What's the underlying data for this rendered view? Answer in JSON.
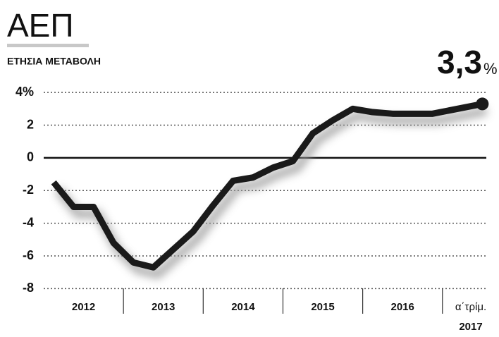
{
  "chart_data": {
    "type": "line",
    "title": "ΑΕΠ",
    "subtitle": "ΕΤΗΣΙΑ ΜΕΤΑΒΟΛΗ",
    "annotation": {
      "text": "3,3",
      "unit": "%"
    },
    "categories": [
      "2012",
      "2013",
      "2014",
      "2015",
      "2016",
      "α΄τρίμ."
    ],
    "category_sublabel": "2017",
    "x": [
      2012.125,
      2012.375,
      2012.625,
      2012.875,
      2013.125,
      2013.375,
      2013.625,
      2013.875,
      2014.125,
      2014.375,
      2014.625,
      2014.875,
      2015.125,
      2015.375,
      2015.625,
      2015.875,
      2016.125,
      2016.375,
      2016.625,
      2016.875,
      2017.5
    ],
    "series": [
      {
        "name": "ΑΕΠ",
        "color": "#1a1a1a",
        "values": [
          -1.5,
          -3.0,
          -3.0,
          -5.2,
          -6.4,
          -6.7,
          -5.6,
          -4.5,
          -2.9,
          -1.4,
          -1.2,
          -0.6,
          -0.2,
          1.5,
          2.3,
          3.0,
          2.8,
          2.7,
          2.7,
          2.7,
          3.3
        ]
      }
    ],
    "xlim": [
      2012,
      2017.55
    ],
    "xticks": [
      2013,
      2014,
      2015,
      2016,
      2017
    ],
    "ylim": [
      -8.5,
      5
    ],
    "yticks": [
      {
        "value": 4,
        "label": "4%"
      },
      2,
      0,
      -2,
      -4,
      -6,
      -8
    ],
    "grid": true
  }
}
